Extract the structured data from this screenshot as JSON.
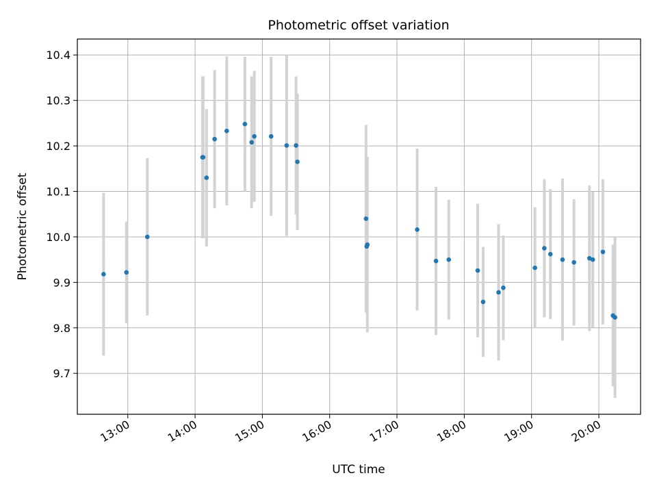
{
  "chart_data": {
    "type": "scatter",
    "title": "Photometric offset variation",
    "xlabel": "UTC time",
    "ylabel": "Photometric offset",
    "xlim": [
      12.25,
      20.62
    ],
    "ylim": [
      9.61,
      10.435
    ],
    "grid": true,
    "x_ticks": [
      {
        "value": 13,
        "label": "13:00"
      },
      {
        "value": 14,
        "label": "14:00"
      },
      {
        "value": 15,
        "label": "15:00"
      },
      {
        "value": 16,
        "label": "16:00"
      },
      {
        "value": 17,
        "label": "17:00"
      },
      {
        "value": 18,
        "label": "18:00"
      },
      {
        "value": 19,
        "label": "19:00"
      },
      {
        "value": 20,
        "label": "20:00"
      }
    ],
    "y_ticks": [
      {
        "value": 9.7,
        "label": "9.7"
      },
      {
        "value": 9.8,
        "label": "9.8"
      },
      {
        "value": 9.9,
        "label": "9.9"
      },
      {
        "value": 10.0,
        "label": "10.0"
      },
      {
        "value": 10.1,
        "label": "10.1"
      },
      {
        "value": 10.2,
        "label": "10.2"
      },
      {
        "value": 10.3,
        "label": "10.3"
      },
      {
        "value": 10.4,
        "label": "10.4"
      }
    ],
    "marker_color": "#1f77b4",
    "errorbar_color": "#d3d3d3",
    "points": [
      {
        "x": 12.64,
        "y": 9.918,
        "yerr": 0.179
      },
      {
        "x": 12.98,
        "y": 9.922,
        "yerr": 0.112
      },
      {
        "x": 13.29,
        "y": 10.0,
        "yerr": 0.173
      },
      {
        "x": 14.11,
        "y": 10.175,
        "yerr": 0.178
      },
      {
        "x": 14.12,
        "y": 10.175,
        "yerr": 0.178
      },
      {
        "x": 14.17,
        "y": 10.13,
        "yerr": 0.151
      },
      {
        "x": 14.29,
        "y": 10.215,
        "yerr": 0.152
      },
      {
        "x": 14.47,
        "y": 10.233,
        "yerr": 0.164
      },
      {
        "x": 14.74,
        "y": 10.248,
        "yerr": 0.148
      },
      {
        "x": 14.84,
        "y": 10.208,
        "yerr": 0.145
      },
      {
        "x": 14.88,
        "y": 10.221,
        "yerr": 0.144
      },
      {
        "x": 15.13,
        "y": 10.221,
        "yerr": 0.175
      },
      {
        "x": 15.36,
        "y": 10.201,
        "yerr": 0.199
      },
      {
        "x": 15.5,
        "y": 10.201,
        "yerr": 0.152
      },
      {
        "x": 15.52,
        "y": 10.165,
        "yerr": 0.15
      },
      {
        "x": 16.54,
        "y": 10.04,
        "yerr": 0.206
      },
      {
        "x": 16.55,
        "y": 9.979,
        "yerr": 0.146
      },
      {
        "x": 16.56,
        "y": 9.983,
        "yerr": 0.193
      },
      {
        "x": 17.3,
        "y": 10.016,
        "yerr": 0.178
      },
      {
        "x": 17.58,
        "y": 9.947,
        "yerr": 0.163
      },
      {
        "x": 17.77,
        "y": 9.95,
        "yerr": 0.132
      },
      {
        "x": 18.2,
        "y": 9.926,
        "yerr": 0.147
      },
      {
        "x": 18.28,
        "y": 9.857,
        "yerr": 0.121
      },
      {
        "x": 18.51,
        "y": 9.878,
        "yerr": 0.15
      },
      {
        "x": 18.58,
        "y": 9.888,
        "yerr": 0.115
      },
      {
        "x": 19.05,
        "y": 9.932,
        "yerr": 0.133
      },
      {
        "x": 19.19,
        "y": 9.975,
        "yerr": 0.152
      },
      {
        "x": 19.28,
        "y": 9.962,
        "yerr": 0.143
      },
      {
        "x": 19.46,
        "y": 9.95,
        "yerr": 0.178
      },
      {
        "x": 19.63,
        "y": 9.944,
        "yerr": 0.139
      },
      {
        "x": 19.86,
        "y": 9.953,
        "yerr": 0.16
      },
      {
        "x": 19.91,
        "y": 9.95,
        "yerr": 0.149
      },
      {
        "x": 20.06,
        "y": 9.967,
        "yerr": 0.16
      },
      {
        "x": 20.21,
        "y": 9.827,
        "yerr": 0.156
      },
      {
        "x": 20.24,
        "y": 9.823,
        "yerr": 0.177
      }
    ]
  }
}
